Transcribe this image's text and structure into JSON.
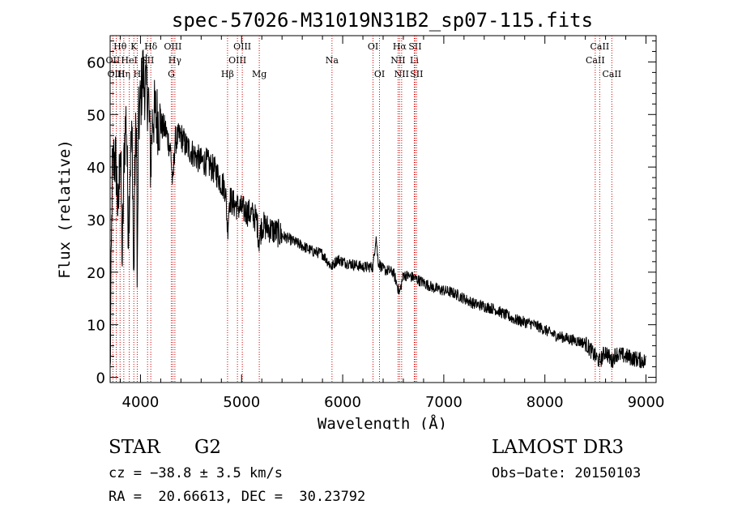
{
  "chart_data": {
    "type": "line",
    "title": "spec-57026-M31019N31B2_sp07-115.fits",
    "xlabel": "Wavelength (Å)",
    "ylabel": "Flux (relative)",
    "xlim": [
      3700,
      9100
    ],
    "ylim": [
      -1,
      65
    ],
    "xticks": [
      4000,
      5000,
      6000,
      7000,
      8000,
      9000
    ],
    "yticks": [
      0,
      10,
      20,
      30,
      40,
      50,
      60
    ],
    "grid": false,
    "series": [
      {
        "name": "flux",
        "points": [
          [
            3700,
            0
          ],
          [
            3720,
            38
          ],
          [
            3740,
            42
          ],
          [
            3760,
            40
          ],
          [
            3780,
            30
          ],
          [
            3800,
            46
          ],
          [
            3820,
            22
          ],
          [
            3840,
            44
          ],
          [
            3860,
            50
          ],
          [
            3880,
            28
          ],
          [
            3900,
            42
          ],
          [
            3920,
            45
          ],
          [
            3933,
            16
          ],
          [
            3945,
            40
          ],
          [
            3960,
            50
          ],
          [
            3968,
            14
          ],
          [
            3980,
            48
          ],
          [
            4000,
            52
          ],
          [
            4020,
            58
          ],
          [
            4050,
            55
          ],
          [
            4080,
            53
          ],
          [
            4101,
            40
          ],
          [
            4120,
            50
          ],
          [
            4150,
            50
          ],
          [
            4200,
            48
          ],
          [
            4250,
            47
          ],
          [
            4300,
            43
          ],
          [
            4320,
            36
          ],
          [
            4340,
            45
          ],
          [
            4400,
            46
          ],
          [
            4450,
            44
          ],
          [
            4500,
            43
          ],
          [
            4550,
            42
          ],
          [
            4600,
            41
          ],
          [
            4650,
            41
          ],
          [
            4700,
            40
          ],
          [
            4750,
            39
          ],
          [
            4800,
            37
          ],
          [
            4840,
            36
          ],
          [
            4861,
            28
          ],
          [
            4880,
            34
          ],
          [
            4920,
            33
          ],
          [
            5000,
            32
          ],
          [
            5100,
            31
          ],
          [
            5150,
            30
          ],
          [
            5172,
            26
          ],
          [
            5200,
            29
          ],
          [
            5300,
            28
          ],
          [
            5400,
            27
          ],
          [
            5500,
            26
          ],
          [
            5600,
            25
          ],
          [
            5700,
            24
          ],
          [
            5800,
            23.5
          ],
          [
            5890,
            21
          ],
          [
            5950,
            22.5
          ],
          [
            6000,
            22
          ],
          [
            6100,
            21.5
          ],
          [
            6200,
            21
          ],
          [
            6300,
            21
          ],
          [
            6330,
            27
          ],
          [
            6350,
            22
          ],
          [
            6400,
            20.5
          ],
          [
            6500,
            20
          ],
          [
            6563,
            16
          ],
          [
            6600,
            19.5
          ],
          [
            6700,
            19
          ],
          [
            6800,
            18
          ],
          [
            6900,
            17
          ],
          [
            7000,
            16.5
          ],
          [
            7100,
            16
          ],
          [
            7200,
            15
          ],
          [
            7300,
            14
          ],
          [
            7400,
            13.5
          ],
          [
            7500,
            13
          ],
          [
            7600,
            12
          ],
          [
            7700,
            11
          ],
          [
            7800,
            10.5
          ],
          [
            7900,
            10
          ],
          [
            8000,
            9
          ],
          [
            8100,
            8
          ],
          [
            8200,
            7.5
          ],
          [
            8300,
            7
          ],
          [
            8400,
            6.5
          ],
          [
            8498,
            4
          ],
          [
            8542,
            3
          ],
          [
            8600,
            5
          ],
          [
            8662,
            3
          ],
          [
            8700,
            4.5
          ],
          [
            8800,
            4
          ],
          [
            8900,
            3.5
          ],
          [
            9000,
            3
          ]
        ]
      }
    ],
    "lines": [
      {
        "label": "Hθ",
        "x": 3798,
        "row": 0
      },
      {
        "label": "OII",
        "x": 3727,
        "row": 1
      },
      {
        "label": "OIII",
        "x": 3760,
        "row": 2
      },
      {
        "label": "Hη",
        "x": 3835,
        "row": 2
      },
      {
        "label": "HeI",
        "x": 3889,
        "row": 1
      },
      {
        "label": "K",
        "x": 3934,
        "row": 0
      },
      {
        "label": "H",
        "x": 3968,
        "row": 2
      },
      {
        "label": "SII",
        "x": 4070,
        "row": 1
      },
      {
        "label": "Hδ",
        "x": 4102,
        "row": 0
      },
      {
        "label": "OIII",
        "x": 4320,
        "row": 0
      },
      {
        "label": "Hγ",
        "x": 4340,
        "row": 1
      },
      {
        "label": "G",
        "x": 4305,
        "row": 2
      },
      {
        "label": "Hβ",
        "x": 4861,
        "row": 2
      },
      {
        "label": "OIII",
        "x": 4959,
        "row": 1
      },
      {
        "label": "OIII",
        "x": 5007,
        "row": 0
      },
      {
        "label": "Mg",
        "x": 5175,
        "row": 2
      },
      {
        "label": "Na",
        "x": 5894,
        "row": 1
      },
      {
        "label": "OI",
        "x": 6300,
        "row": 0
      },
      {
        "label": "OI",
        "x": 6364,
        "row": 2
      },
      {
        "label": "Hα",
        "x": 6563,
        "row": 0
      },
      {
        "label": "NII",
        "x": 6548,
        "row": 1
      },
      {
        "label": "NII",
        "x": 6583,
        "row": 2
      },
      {
        "label": "SII",
        "x": 6716,
        "row": 0
      },
      {
        "label": "Li",
        "x": 6708,
        "row": 1
      },
      {
        "label": "SII",
        "x": 6731,
        "row": 2
      },
      {
        "label": "CaII",
        "x": 8542,
        "row": 0
      },
      {
        "label": "CaII",
        "x": 8498,
        "row": 1
      },
      {
        "label": "CaII",
        "x": 8662,
        "row": 2
      }
    ]
  },
  "info": {
    "class_label": "STAR",
    "subclass": "G2",
    "survey": "LAMOST DR3",
    "cz": "cz = −38.8 ± 3.5 km/s",
    "obs_date": "Obs−Date: 20150103",
    "coords": "RA =  20.66613, DEC =  30.23792"
  },
  "colors": {
    "line": "#000000",
    "marker": "#cc0000"
  }
}
